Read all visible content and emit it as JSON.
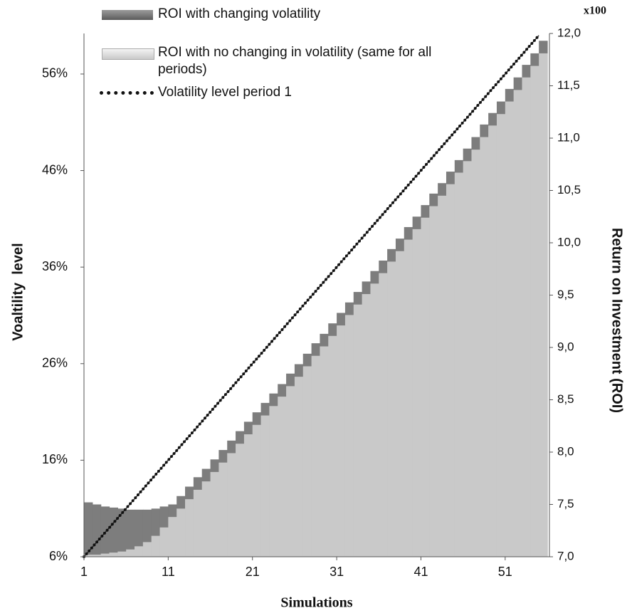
{
  "chart_data": {
    "type": "combo",
    "y2unit": "x100",
    "xlabel": "Simulations",
    "ylabel": "Voaltility  level",
    "y2label": "Return on Investment (ROI)",
    "x": [
      1,
      2,
      3,
      4,
      5,
      6,
      7,
      8,
      9,
      10,
      11,
      12,
      13,
      14,
      15,
      16,
      17,
      18,
      19,
      20,
      21,
      22,
      23,
      24,
      25,
      26,
      27,
      28,
      29,
      30,
      31,
      32,
      33,
      34,
      35,
      36,
      37,
      38,
      39,
      40,
      41,
      42,
      43,
      44,
      45,
      46,
      47,
      48,
      49,
      50,
      51,
      52,
      53,
      54,
      55
    ],
    "xlim": [
      1,
      56
    ],
    "xticks": [
      1,
      11,
      21,
      31,
      41,
      51
    ],
    "ylim": [
      6,
      60.2
    ],
    "yticks": [
      {
        "value": 6,
        "label": "6%"
      },
      {
        "value": 16,
        "label": "16%"
      },
      {
        "value": 26,
        "label": "26%"
      },
      {
        "value": 36,
        "label": "36%"
      },
      {
        "value": 46,
        "label": "46%"
      },
      {
        "value": 56,
        "label": "56%"
      }
    ],
    "y2lim": [
      7,
      12
    ],
    "y2ticks": [
      {
        "value": 7,
        "label": "7,0"
      },
      {
        "value": 7.5,
        "label": "7,5"
      },
      {
        "value": 8,
        "label": "8,0"
      },
      {
        "value": 8.5,
        "label": "8,5"
      },
      {
        "value": 9,
        "label": "9,0"
      },
      {
        "value": 9.5,
        "label": "9,5"
      },
      {
        "value": 10,
        "label": "10,0"
      },
      {
        "value": 10.5,
        "label": "10,5"
      },
      {
        "value": 11,
        "label": "11,0"
      },
      {
        "value": 11.5,
        "label": "11,5"
      },
      {
        "value": 12,
        "label": "12,0"
      }
    ],
    "series": [
      {
        "name": "ROI with changing volatility",
        "color": "#7d7d7d",
        "type": "step-area",
        "axis": "y2",
        "values": [
          7.52,
          7.5,
          7.48,
          7.47,
          7.46,
          7.45,
          7.45,
          7.45,
          7.46,
          7.48,
          7.5,
          7.58,
          7.67,
          7.76,
          7.84,
          7.93,
          8.02,
          8.11,
          8.2,
          8.29,
          8.38,
          8.47,
          8.56,
          8.65,
          8.75,
          8.84,
          8.94,
          9.04,
          9.13,
          9.23,
          9.33,
          9.43,
          9.53,
          9.63,
          9.73,
          9.83,
          9.94,
          10.04,
          10.15,
          10.25,
          10.36,
          10.47,
          10.57,
          10.68,
          10.79,
          10.9,
          11.01,
          11.13,
          11.24,
          11.35,
          11.47,
          11.58,
          11.7,
          11.81,
          11.93
        ]
      },
      {
        "name": "ROI with no changing in volatility (same for all periods)",
        "color": "#c9c9c9",
        "type": "step-area",
        "axis": "y2",
        "values": [
          7.02,
          7.02,
          7.03,
          7.04,
          7.05,
          7.07,
          7.1,
          7.14,
          7.2,
          7.28,
          7.38,
          7.46,
          7.55,
          7.64,
          7.72,
          7.81,
          7.9,
          7.99,
          8.08,
          8.17,
          8.26,
          8.35,
          8.44,
          8.53,
          8.63,
          8.72,
          8.82,
          8.92,
          9.01,
          9.11,
          9.21,
          9.31,
          9.41,
          9.51,
          9.61,
          9.71,
          9.82,
          9.92,
          10.03,
          10.13,
          10.24,
          10.35,
          10.45,
          10.56,
          10.67,
          10.78,
          10.89,
          11.01,
          11.12,
          11.23,
          11.35,
          11.46,
          11.58,
          11.69,
          11.81
        ]
      },
      {
        "name": "Volatility level period 1",
        "color": "#111111",
        "type": "line",
        "values": [
          6,
          7,
          8,
          9,
          10,
          11,
          12,
          13,
          14,
          15,
          16,
          17,
          18,
          19,
          20,
          21,
          22,
          23,
          24,
          25,
          26,
          27,
          28,
          29,
          30,
          31,
          32,
          33,
          34,
          35,
          36,
          37,
          38,
          39,
          40,
          41,
          42,
          43,
          44,
          45,
          46,
          47,
          48,
          49,
          50,
          51,
          52,
          53,
          54,
          55,
          56,
          57,
          58,
          59,
          60
        ]
      }
    ]
  }
}
